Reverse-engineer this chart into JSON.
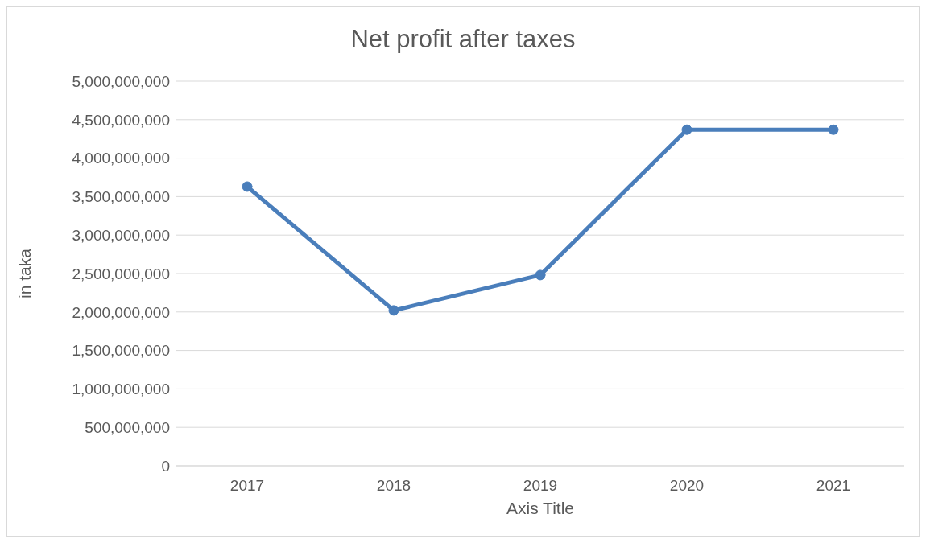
{
  "chart_data": {
    "type": "line",
    "title": "Net profit after taxes",
    "xlabel": "Axis Title",
    "ylabel": "in taka",
    "categories": [
      "2017",
      "2018",
      "2019",
      "2020",
      "2021"
    ],
    "series": [
      {
        "color": "#4a7ebb",
        "values": [
          3630000000,
          2020000000,
          2480000000,
          4370000000,
          4370000000
        ]
      }
    ],
    "ylim": [
      0,
      5000000000
    ],
    "yticks": [
      0,
      {
        "value": 500000000,
        "label": "500,000,000"
      },
      {
        "value": 1000000000,
        "label": "1,000,000,000"
      },
      {
        "value": 1500000000,
        "label": "1,500,000,000"
      },
      {
        "value": 2000000000,
        "label": "2,000,000,000"
      },
      {
        "value": 2500000000,
        "label": "2,500,000,000"
      },
      {
        "value": 3000000000,
        "label": "3,000,000,000"
      },
      {
        "value": 3500000000,
        "label": "3,500,000,000"
      },
      {
        "value": 4000000000,
        "label": "4,000,000,000"
      },
      {
        "value": 4500000000,
        "label": "4,500,000,000"
      },
      {
        "value": 5000000000,
        "label": "5,000,000,000"
      }
    ],
    "grid": "y",
    "marker": "circle",
    "line_style": "solid"
  }
}
